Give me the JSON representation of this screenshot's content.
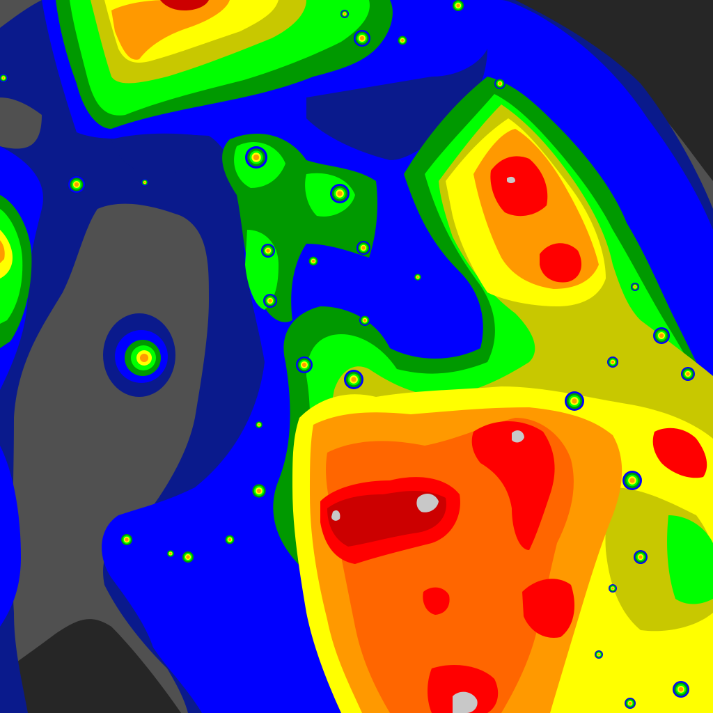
{
  "map": {
    "type": "light-pollution contour map",
    "text_labels": [],
    "palette": {
      "very-dark": "#262626",
      "dark-gray": "#505050",
      "dark-blue": "#0a1a8c",
      "blue": "#0000ff",
      "dark-green": "#009900",
      "green": "#00ff00",
      "olive": "#c8c800",
      "yellow": "#ffff00",
      "orange": "#ff9900",
      "dark-orange": "#ff6600",
      "red": "#ff0000",
      "dark-red": "#cc0000",
      "light-gray": "#c8c8c8"
    }
  }
}
